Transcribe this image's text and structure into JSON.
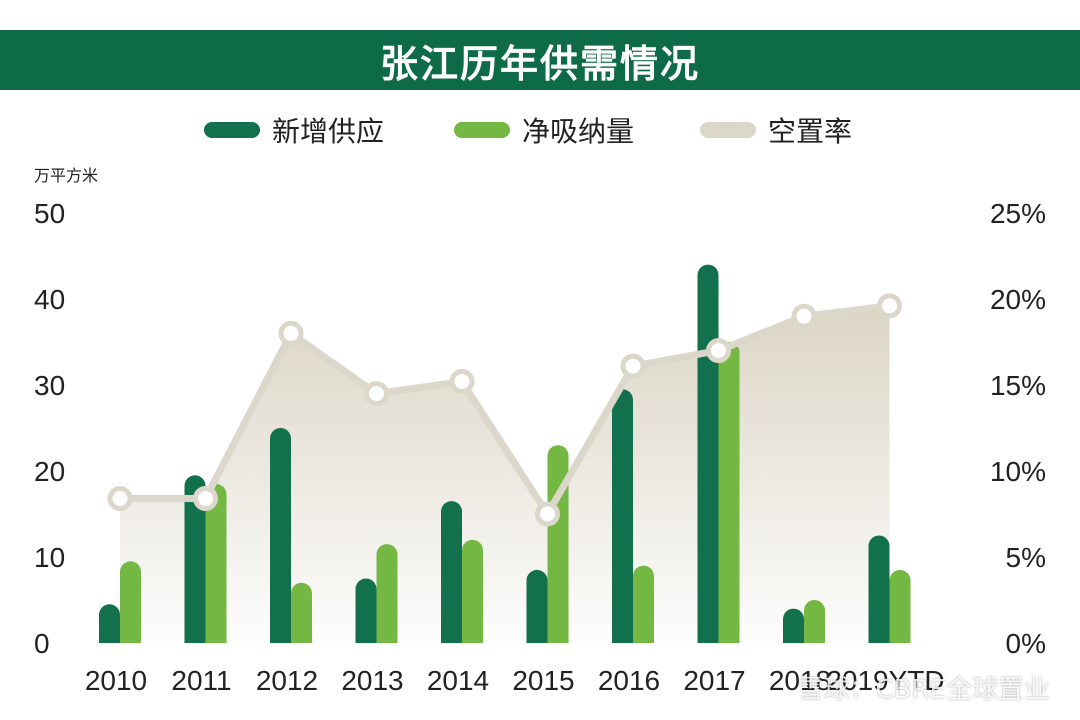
{
  "title": "张江历年供需情况",
  "unit_label": "万平方米",
  "watermark": "雪球：CBRE全球置业",
  "colors": {
    "new_supply": "#12704c",
    "net_absorption": "#74b743",
    "vacancy_line": "#dcd7cb",
    "vacancy_fill": "#d9d3c3",
    "title_bg": "#0e6b47"
  },
  "chart_data": {
    "type": "bar+line",
    "categories": [
      "2010",
      "2011",
      "2012",
      "2013",
      "2014",
      "2015",
      "2016",
      "2017",
      "2018",
      "2019YTD"
    ],
    "series": [
      {
        "name": "新增供应",
        "type": "bar",
        "axis": "left",
        "values": [
          4.5,
          19.5,
          25,
          7.5,
          16.5,
          8.5,
          29.5,
          44,
          4,
          12.5
        ]
      },
      {
        "name": "净吸纳量",
        "type": "bar",
        "axis": "left",
        "values": [
          9.5,
          18.5,
          7,
          11.5,
          12,
          23,
          9,
          35,
          5,
          8.5
        ]
      },
      {
        "name": "空置率",
        "type": "line+area",
        "axis": "right",
        "values": [
          8.4,
          8.4,
          18.0,
          14.5,
          15.2,
          7.5,
          16.1,
          17.0,
          19.0,
          19.6
        ]
      }
    ],
    "left_axis": {
      "min": 0,
      "max": 50,
      "ticks": [
        "0",
        "10",
        "20",
        "30",
        "40",
        "50"
      ]
    },
    "right_axis": {
      "min": 0,
      "max": 25,
      "ticks": [
        "0%",
        "5%",
        "10%",
        "15%",
        "20%",
        "25%"
      ]
    },
    "grid": false,
    "legend_position": "top"
  }
}
